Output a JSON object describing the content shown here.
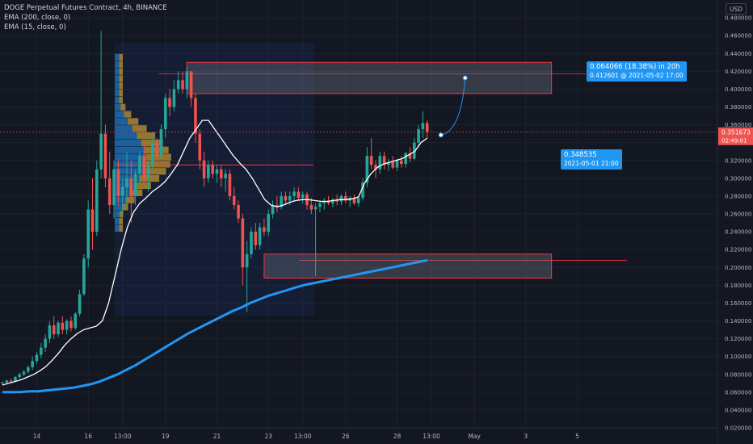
{
  "legend": {
    "symbol": "DOGE Perpetual Futures Contract, 4h, BINANCE",
    "ema200": "EMA (200, close, 0)",
    "ema15": "EMA (15, close, 0)"
  },
  "currency": "USD",
  "colors": {
    "background": "#131722",
    "up": "#26a69a",
    "down": "#ef5350",
    "ema200": "#2196f3",
    "ema15": "#ffffff",
    "axis_text": "#b2b5be",
    "zone_border": "#f23645",
    "zone_fill": "#787b86",
    "measure": "#2196f3"
  },
  "chart_data": {
    "type": "candlestick",
    "ylim": [
      0.02,
      0.5
    ],
    "y_ticks": [
      "0.480000",
      "0.460000",
      "0.440000",
      "0.420000",
      "0.400000",
      "0.380000",
      "0.360000",
      "0.340000",
      "0.320000",
      "0.300000",
      "0.280000",
      "0.260000",
      "0.240000",
      "0.220000",
      "0.200000",
      "0.180000",
      "0.160000",
      "0.140000",
      "0.120000",
      "0.100000",
      "0.080000",
      "0.060000",
      "0.040000",
      "0.020000"
    ],
    "x_ticks": [
      {
        "label": "14",
        "bar": 8
      },
      {
        "label": "16",
        "bar": 20
      },
      {
        "label": "13:00",
        "bar": 28
      },
      {
        "label": "19",
        "bar": 38
      },
      {
        "label": "21",
        "bar": 50
      },
      {
        "label": "23",
        "bar": 62
      },
      {
        "label": "13:00",
        "bar": 70
      },
      {
        "label": "26",
        "bar": 80
      },
      {
        "label": "28",
        "bar": 92
      },
      {
        "label": "13:00",
        "bar": 100
      },
      {
        "label": "May",
        "bar": 110
      },
      {
        "label": "3",
        "bar": 122
      },
      {
        "label": "5",
        "bar": 134
      }
    ],
    "last_price": "0.351673",
    "countdown": "02:49:01",
    "candles": [
      [
        0.07,
        0.072,
        0.068,
        0.071
      ],
      [
        0.071,
        0.074,
        0.069,
        0.073
      ],
      [
        0.073,
        0.075,
        0.071,
        0.072
      ],
      [
        0.072,
        0.078,
        0.071,
        0.077
      ],
      [
        0.077,
        0.082,
        0.075,
        0.08
      ],
      [
        0.08,
        0.085,
        0.078,
        0.083
      ],
      [
        0.083,
        0.09,
        0.081,
        0.088
      ],
      [
        0.088,
        0.1,
        0.085,
        0.095
      ],
      [
        0.095,
        0.105,
        0.092,
        0.102
      ],
      [
        0.102,
        0.115,
        0.098,
        0.11
      ],
      [
        0.11,
        0.125,
        0.105,
        0.12
      ],
      [
        0.12,
        0.14,
        0.115,
        0.135
      ],
      [
        0.135,
        0.145,
        0.12,
        0.125
      ],
      [
        0.125,
        0.14,
        0.122,
        0.138
      ],
      [
        0.138,
        0.145,
        0.125,
        0.13
      ],
      [
        0.13,
        0.142,
        0.125,
        0.14
      ],
      [
        0.14,
        0.145,
        0.128,
        0.132
      ],
      [
        0.132,
        0.15,
        0.13,
        0.148
      ],
      [
        0.148,
        0.175,
        0.145,
        0.17
      ],
      [
        0.17,
        0.215,
        0.168,
        0.21
      ],
      [
        0.21,
        0.275,
        0.2,
        0.265
      ],
      [
        0.265,
        0.3,
        0.22,
        0.24
      ],
      [
        0.24,
        0.32,
        0.235,
        0.31
      ],
      [
        0.31,
        0.465,
        0.3,
        0.35
      ],
      [
        0.35,
        0.36,
        0.29,
        0.3
      ],
      [
        0.3,
        0.33,
        0.26,
        0.27
      ],
      [
        0.27,
        0.32,
        0.255,
        0.31
      ],
      [
        0.31,
        0.32,
        0.27,
        0.28
      ],
      [
        0.28,
        0.3,
        0.26,
        0.29
      ],
      [
        0.29,
        0.33,
        0.27,
        0.3
      ],
      [
        0.3,
        0.32,
        0.25,
        0.28
      ],
      [
        0.28,
        0.31,
        0.27,
        0.305
      ],
      [
        0.305,
        0.33,
        0.295,
        0.325
      ],
      [
        0.325,
        0.34,
        0.295,
        0.3
      ],
      [
        0.3,
        0.32,
        0.285,
        0.315
      ],
      [
        0.315,
        0.35,
        0.31,
        0.34
      ],
      [
        0.34,
        0.345,
        0.32,
        0.325
      ],
      [
        0.325,
        0.36,
        0.32,
        0.355
      ],
      [
        0.355,
        0.395,
        0.345,
        0.39
      ],
      [
        0.39,
        0.4,
        0.37,
        0.38
      ],
      [
        0.38,
        0.41,
        0.375,
        0.4
      ],
      [
        0.4,
        0.42,
        0.395,
        0.41
      ],
      [
        0.41,
        0.42,
        0.395,
        0.4
      ],
      [
        0.4,
        0.425,
        0.39,
        0.42
      ],
      [
        0.42,
        0.42,
        0.38,
        0.39
      ],
      [
        0.39,
        0.395,
        0.34,
        0.35
      ],
      [
        0.35,
        0.355,
        0.31,
        0.32
      ],
      [
        0.32,
        0.33,
        0.29,
        0.3
      ],
      [
        0.3,
        0.32,
        0.295,
        0.315
      ],
      [
        0.315,
        0.32,
        0.3,
        0.305
      ],
      [
        0.305,
        0.315,
        0.295,
        0.31
      ],
      [
        0.31,
        0.315,
        0.29,
        0.3
      ],
      [
        0.3,
        0.31,
        0.285,
        0.305
      ],
      [
        0.305,
        0.31,
        0.275,
        0.28
      ],
      [
        0.28,
        0.29,
        0.265,
        0.27
      ],
      [
        0.27,
        0.275,
        0.25,
        0.255
      ],
      [
        0.255,
        0.26,
        0.18,
        0.2
      ],
      [
        0.2,
        0.23,
        0.15,
        0.215
      ],
      [
        0.215,
        0.245,
        0.21,
        0.24
      ],
      [
        0.24,
        0.25,
        0.22,
        0.225
      ],
      [
        0.225,
        0.25,
        0.22,
        0.245
      ],
      [
        0.245,
        0.255,
        0.235,
        0.24
      ],
      [
        0.24,
        0.265,
        0.235,
        0.26
      ],
      [
        0.26,
        0.275,
        0.255,
        0.27
      ],
      [
        0.27,
        0.28,
        0.262,
        0.268
      ],
      [
        0.268,
        0.285,
        0.265,
        0.28
      ],
      [
        0.28,
        0.285,
        0.27,
        0.275
      ],
      [
        0.275,
        0.285,
        0.27,
        0.28
      ],
      [
        0.28,
        0.29,
        0.275,
        0.285
      ],
      [
        0.285,
        0.29,
        0.275,
        0.278
      ],
      [
        0.278,
        0.285,
        0.272,
        0.282
      ],
      [
        0.282,
        0.285,
        0.265,
        0.27
      ],
      [
        0.27,
        0.278,
        0.26,
        0.265
      ],
      [
        0.265,
        0.272,
        0.19,
        0.268
      ],
      [
        0.268,
        0.275,
        0.262,
        0.272
      ],
      [
        0.272,
        0.278,
        0.265,
        0.275
      ],
      [
        0.275,
        0.28,
        0.27,
        0.272
      ],
      [
        0.272,
        0.278,
        0.268,
        0.276
      ],
      [
        0.276,
        0.282,
        0.27,
        0.274
      ],
      [
        0.274,
        0.282,
        0.27,
        0.28
      ],
      [
        0.28,
        0.285,
        0.272,
        0.275
      ],
      [
        0.275,
        0.28,
        0.268,
        0.278
      ],
      [
        0.278,
        0.282,
        0.27,
        0.272
      ],
      [
        0.272,
        0.28,
        0.268,
        0.278
      ],
      [
        0.278,
        0.3,
        0.275,
        0.295
      ],
      [
        0.295,
        0.335,
        0.29,
        0.325
      ],
      [
        0.325,
        0.345,
        0.31,
        0.315
      ],
      [
        0.315,
        0.32,
        0.3,
        0.31
      ],
      [
        0.31,
        0.33,
        0.305,
        0.325
      ],
      [
        0.325,
        0.33,
        0.31,
        0.315
      ],
      [
        0.315,
        0.322,
        0.308,
        0.318
      ],
      [
        0.318,
        0.325,
        0.31,
        0.312
      ],
      [
        0.312,
        0.322,
        0.308,
        0.32
      ],
      [
        0.32,
        0.325,
        0.312,
        0.316
      ],
      [
        0.316,
        0.33,
        0.312,
        0.328
      ],
      [
        0.328,
        0.335,
        0.318,
        0.322
      ],
      [
        0.322,
        0.345,
        0.32,
        0.34
      ],
      [
        0.34,
        0.36,
        0.335,
        0.355
      ],
      [
        0.355,
        0.375,
        0.345,
        0.362
      ],
      [
        0.362,
        0.365,
        0.345,
        0.352
      ]
    ],
    "series": [
      {
        "name": "EMA (200, close, 0)",
        "values": [
          0.06,
          0.06,
          0.06,
          0.061,
          0.061,
          0.062,
          0.063,
          0.064,
          0.065,
          0.067,
          0.069,
          0.072,
          0.076,
          0.08,
          0.085,
          0.09,
          0.096,
          0.102,
          0.108,
          0.114,
          0.12,
          0.126,
          0.131,
          0.136,
          0.141,
          0.146,
          0.151,
          0.155,
          0.16,
          0.164,
          0.168,
          0.171,
          0.174,
          0.177,
          0.18,
          0.182,
          0.184,
          0.186,
          0.188,
          0.19,
          0.192,
          0.194,
          0.196,
          0.198,
          0.2,
          0.202,
          0.204,
          0.206,
          0.208
        ]
      },
      {
        "name": "EMA (15, close, 0)",
        "values": [
          0.068,
          0.07,
          0.072,
          0.074,
          0.077,
          0.08,
          0.084,
          0.089,
          0.096,
          0.104,
          0.113,
          0.12,
          0.126,
          0.13,
          0.132,
          0.134,
          0.14,
          0.16,
          0.19,
          0.22,
          0.245,
          0.262,
          0.272,
          0.278,
          0.285,
          0.29,
          0.296,
          0.305,
          0.315,
          0.33,
          0.345,
          0.355,
          0.365,
          0.365,
          0.355,
          0.345,
          0.335,
          0.325,
          0.317,
          0.31,
          0.3,
          0.288,
          0.276,
          0.27,
          0.268,
          0.27,
          0.273,
          0.275,
          0.276,
          0.276,
          0.275,
          0.274,
          0.274,
          0.275,
          0.276,
          0.276,
          0.277,
          0.279,
          0.295,
          0.305,
          0.312,
          0.316,
          0.318,
          0.32,
          0.322,
          0.326,
          0.33,
          0.34,
          0.345
        ]
      }
    ],
    "zones": [
      {
        "from_bar": 43,
        "to_bar": 128,
        "low": 0.395,
        "high": 0.43
      },
      {
        "from_bar": 61,
        "to_bar": 128,
        "low": 0.188,
        "high": 0.215
      }
    ],
    "measure": {
      "change": "0.064066 (18.38%) in 20h",
      "target": "0.412601 @ 2021-05-02  17:00",
      "start_price": "0.348535",
      "start_date": "2021-05-01 21:00"
    }
  }
}
